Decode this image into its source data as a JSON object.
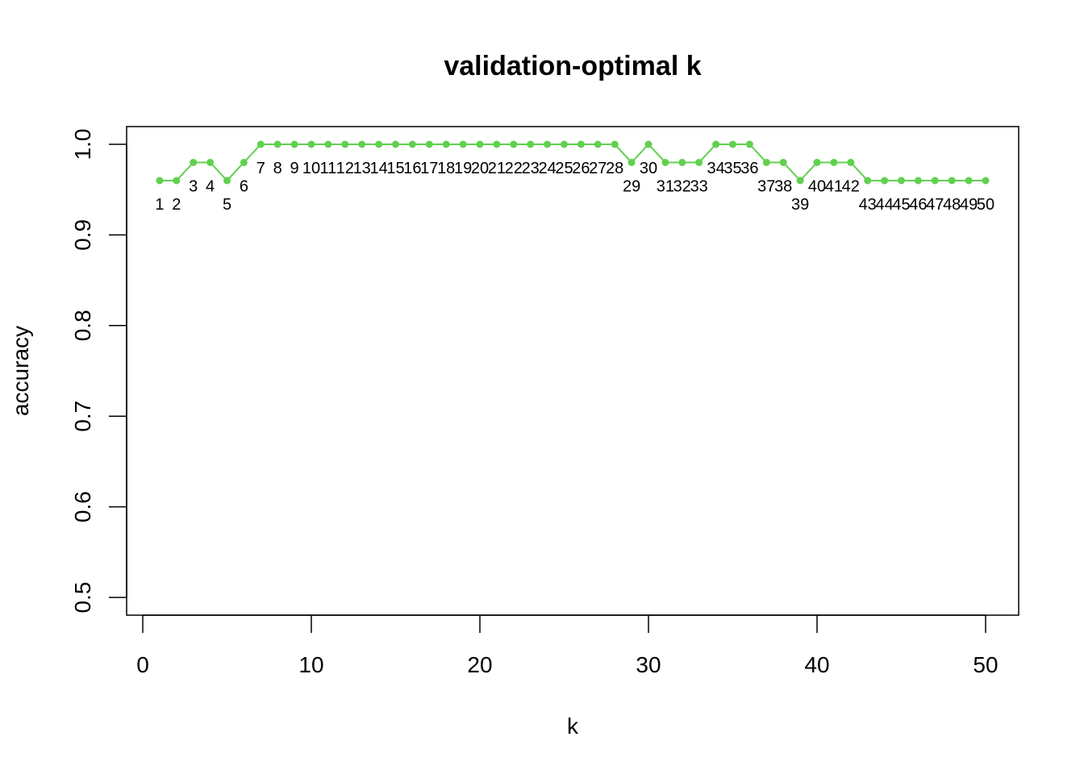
{
  "chart_data": {
    "type": "line",
    "title": "validation-optimal k",
    "xlabel": "k",
    "ylabel": "accuracy",
    "xlim": [
      0,
      50
    ],
    "ylim": [
      0.5,
      1.0
    ],
    "xticks": [
      0,
      10,
      20,
      30,
      40,
      50
    ],
    "xtick_labels": [
      "0",
      "10",
      "20",
      "30",
      "40",
      "50"
    ],
    "yticks": [
      0.5,
      0.6,
      0.7,
      0.8,
      0.9,
      1.0
    ],
    "ytick_labels": [
      "0.5",
      "0.6",
      "0.7",
      "0.8",
      "0.9",
      "1.0"
    ],
    "grid": false,
    "series": [
      {
        "color": "#61d04f",
        "x": [
          1,
          2,
          3,
          4,
          5,
          6,
          7,
          8,
          9,
          10,
          11,
          12,
          13,
          14,
          15,
          16,
          17,
          18,
          19,
          20,
          21,
          22,
          23,
          24,
          25,
          26,
          27,
          28,
          29,
          30,
          31,
          32,
          33,
          34,
          35,
          36,
          37,
          38,
          39,
          40,
          41,
          42,
          43,
          44,
          45,
          46,
          47,
          48,
          49,
          50
        ],
        "values": [
          0.96,
          0.96,
          0.98,
          0.98,
          0.96,
          0.98,
          1.0,
          1.0,
          1.0,
          1.0,
          1.0,
          1.0,
          1.0,
          1.0,
          1.0,
          1.0,
          1.0,
          1.0,
          1.0,
          1.0,
          1.0,
          1.0,
          1.0,
          1.0,
          1.0,
          1.0,
          1.0,
          1.0,
          0.98,
          1.0,
          0.98,
          0.98,
          0.98,
          1.0,
          1.0,
          1.0,
          0.98,
          0.98,
          0.96,
          0.98,
          0.98,
          0.98,
          0.96,
          0.96,
          0.96,
          0.96,
          0.96,
          0.96,
          0.96,
          0.96
        ],
        "point_labels": [
          "1",
          "2",
          "3",
          "4",
          "5",
          "6",
          "7",
          "8",
          "9",
          "10",
          "11",
          "12",
          "13",
          "14",
          "15",
          "16",
          "17",
          "18",
          "19",
          "20",
          "21",
          "22",
          "23",
          "24",
          "25",
          "26",
          "27",
          "28",
          "29",
          "30",
          "31",
          "32",
          "33",
          "34",
          "35",
          "36",
          "37",
          "38",
          "39",
          "40",
          "41",
          "42",
          "43",
          "44",
          "45",
          "46",
          "47",
          "48",
          "49",
          "50"
        ]
      }
    ]
  }
}
